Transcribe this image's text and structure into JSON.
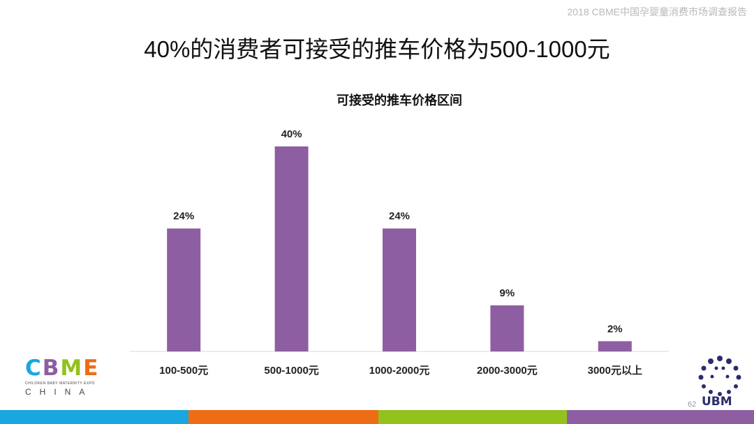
{
  "header": {
    "report_title": "2018 CBME中国孕婴童消费市场调查报告",
    "page_title": "40%的消费者可接受的推车价格为500-1000元"
  },
  "chart_data": {
    "type": "bar",
    "title": "可接受的推车价格区间",
    "categories": [
      "100-500元",
      "500-1000元",
      "1000-2000元",
      "2000-3000元",
      "3000元以上"
    ],
    "values": [
      24,
      40,
      24,
      9,
      2
    ],
    "data_labels": [
      "24%",
      "40%",
      "24%",
      "9%",
      "2%"
    ],
    "unit": "%",
    "ylim": [
      0,
      40
    ],
    "grid": false,
    "legend": "none",
    "bar_color": "#8e5ea2"
  },
  "footer": {
    "cbme_logo": {
      "letters": [
        "C",
        "B",
        "M",
        "E"
      ],
      "tagline": "CHILDREN·BABY·MATERNITY EXPO",
      "country": "CHINA"
    },
    "ubm_logo": "UBM",
    "page_number": "62",
    "colors": {
      "bar_blue": "#1aa6e0",
      "bar_orange": "#ee6d14",
      "bar_green": "#93c11e",
      "bar_purple": "#8e5ea2"
    }
  }
}
